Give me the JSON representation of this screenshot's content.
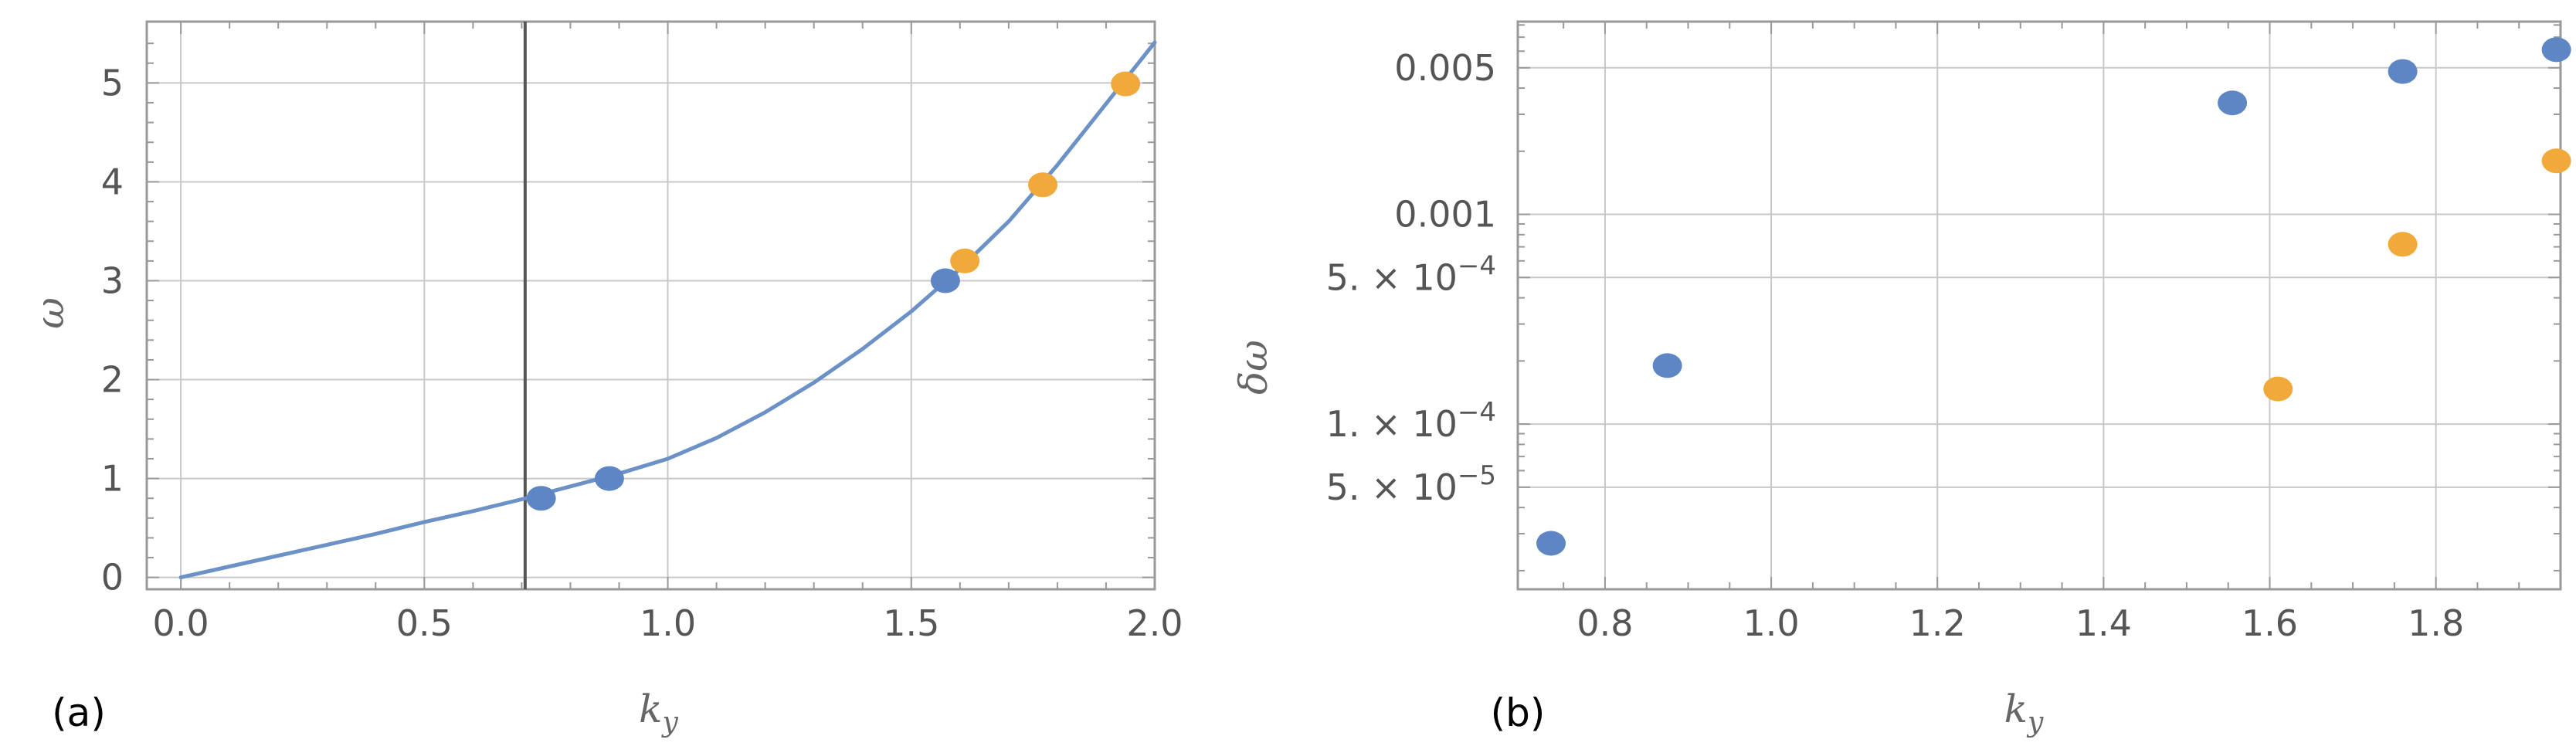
{
  "chart_data": [
    {
      "type": "scatter",
      "panel_label": "(a)",
      "title": "",
      "xlabel": "k",
      "xlabel_sub": "y",
      "ylabel": "ω",
      "xlim": [
        -0.07,
        2.0
      ],
      "ylim": [
        -0.12,
        5.62
      ],
      "x_ticks": [
        "0.0",
        "0.5",
        "1.0",
        "1.5",
        "2.0"
      ],
      "x_tick_values": [
        0,
        0.5,
        1,
        1.5,
        2
      ],
      "y_ticks": [
        "0",
        "1",
        "2",
        "3",
        "4",
        "5"
      ],
      "y_tick_values": [
        0,
        1,
        2,
        3,
        4,
        5
      ],
      "x_minor_ticks": [
        0.1,
        0.2,
        0.3,
        0.4,
        0.6,
        0.7,
        0.8,
        0.9,
        1.1,
        1.2,
        1.3,
        1.4,
        1.6,
        1.7,
        1.8,
        1.9
      ],
      "y_minor_ticks": [
        0.2,
        0.4,
        0.6,
        0.8,
        1.2,
        1.4,
        1.6,
        1.8,
        2.2,
        2.4,
        2.6,
        2.8,
        3.2,
        3.4,
        3.6,
        3.8,
        4.2,
        4.4,
        4.6,
        4.8,
        5.2,
        5.4
      ],
      "grid": true,
      "vertical_line_x": 0.707,
      "curve": {
        "x": [
          0.0,
          0.1,
          0.2,
          0.3,
          0.4,
          0.5,
          0.6,
          0.7,
          0.8,
          0.9,
          1.0,
          1.1,
          1.2,
          1.3,
          1.4,
          1.5,
          1.6,
          1.7,
          1.8,
          1.9,
          2.0
        ],
        "y": [
          0.0,
          0.11,
          0.22,
          0.33,
          0.44,
          0.56,
          0.67,
          0.79,
          0.92,
          1.05,
          1.2,
          1.41,
          1.67,
          1.97,
          2.31,
          2.69,
          3.12,
          3.6,
          4.17,
          4.79,
          5.41
        ]
      },
      "series": [
        {
          "x": [
            0.74,
            0.88,
            1.57
          ],
          "y": [
            0.8,
            1.0,
            3.0
          ]
        },
        {
          "x": [
            1.61,
            1.77,
            1.94
          ],
          "y": [
            3.2,
            3.97,
            4.99
          ]
        }
      ],
      "colors": {
        "blue": "#5f86c4",
        "orange": "#f2a93b",
        "curve": "#6b91c7",
        "vline": "#555555",
        "grid": "#c8c8c8",
        "frame": "#999999"
      }
    },
    {
      "type": "scatter",
      "panel_label": "(b)",
      "title": "",
      "xlabel": "k",
      "xlabel_sub": "y",
      "ylabel": "δω",
      "yscale": "log",
      "xlim": [
        0.695,
        1.95
      ],
      "ylim": [
        1.63e-05,
        0.0083
      ],
      "x_ticks": [
        "0.8",
        "1.0",
        "1.2",
        "1.4",
        "1.6",
        "1.8"
      ],
      "x_tick_values": [
        0.8,
        1.0,
        1.2,
        1.4,
        1.6,
        1.8
      ],
      "y_ticks": [
        {
          "value": 5e-05,
          "mantissa": "5. × 10",
          "exp": "−5"
        },
        {
          "value": 0.0001,
          "mantissa": "1. × 10",
          "exp": "−4"
        },
        {
          "value": 0.0005,
          "mantissa": "5. × 10",
          "exp": "−4"
        },
        {
          "value": 0.001,
          "mantissa": "0.001",
          "exp": ""
        },
        {
          "value": 0.005,
          "mantissa": "0.005",
          "exp": ""
        }
      ],
      "y_grid_values": [
        5e-05,
        0.0001,
        0.0005,
        0.001,
        0.005
      ],
      "x_minor_ticks": [
        0.75,
        0.85,
        0.9,
        0.95,
        1.05,
        1.1,
        1.15,
        1.25,
        1.3,
        1.35,
        1.45,
        1.5,
        1.55,
        1.65,
        1.7,
        1.75,
        1.85,
        1.9
      ],
      "grid": true,
      "series": [
        {
          "x": [
            0.735,
            0.875,
            1.555,
            1.76,
            1.945
          ],
          "y": [
            2.7e-05,
            0.00019,
            0.0034,
            0.0048,
            0.0061
          ]
        },
        {
          "x": [
            1.61,
            1.76,
            1.945
          ],
          "y": [
            0.000147,
            0.00072,
            0.0018
          ]
        }
      ],
      "colors": {
        "blue": "#5f86c4",
        "orange": "#f2a93b",
        "grid": "#c8c8c8",
        "frame": "#999999"
      }
    }
  ]
}
